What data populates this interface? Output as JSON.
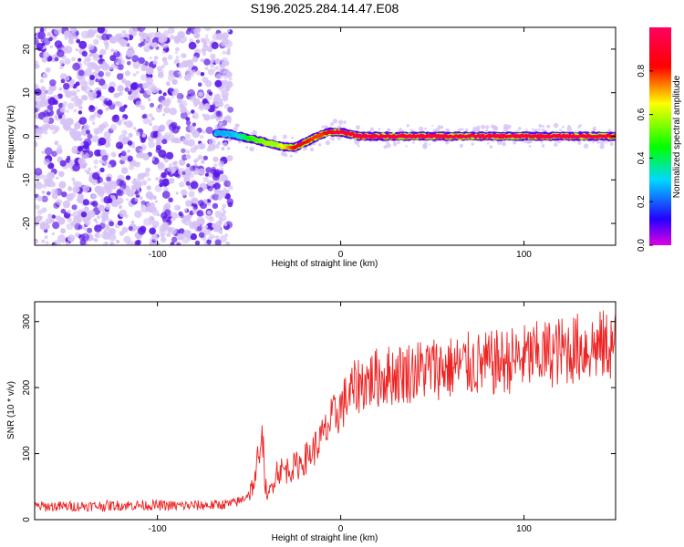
{
  "figure": {
    "title": "S196.2025.284.14.47.E08"
  },
  "colors": {
    "snr_line": "#ee2222",
    "scatter_points": "#5a16e8",
    "scatter_faint": "#d6c2f6",
    "colormap": [
      "#e000e0",
      "#2400ff",
      "#00d8ff",
      "#00ff00",
      "#ffff00",
      "#ff0000",
      "#ff0060"
    ]
  },
  "chart_data": [
    {
      "type": "heatmap",
      "title": "S196.2025.284.14.47.E08",
      "xlabel": "Height of straight line (km)",
      "ylabel": "Frequency (Hz)",
      "xlim": [
        -167,
        150
      ],
      "ylim": [
        -25,
        25
      ],
      "xticks": [
        -100,
        0,
        100
      ],
      "xtick_labels": [
        "-100",
        "0",
        "100"
      ],
      "yticks": [
        -20,
        -10,
        0,
        10,
        20
      ],
      "ytick_labels": [
        "-20",
        "-10",
        "0",
        "10",
        "20"
      ],
      "noise_region_x": [
        -167,
        -60
      ],
      "ridge": {
        "x": [
          -68,
          -60,
          -55,
          -50,
          -45,
          -40,
          -35,
          -30,
          -25,
          -20,
          -15,
          -10,
          -5,
          0,
          5,
          10,
          20,
          40,
          60,
          80,
          100,
          120,
          140,
          150
        ],
        "frequency": [
          0.8,
          0.5,
          0.0,
          -0.5,
          -1.0,
          -1.5,
          -2.0,
          -2.5,
          -2.5,
          -1.5,
          -0.5,
          0.5,
          1.0,
          1.0,
          0.5,
          0.0,
          0.0,
          0.0,
          0.0,
          0.0,
          0.0,
          0.0,
          0.0,
          0.0
        ],
        "normalized_amplitude": [
          0.3,
          0.3,
          0.35,
          0.5,
          0.55,
          0.6,
          0.6,
          0.7,
          0.85,
          0.85,
          0.8,
          0.8,
          0.9,
          0.95,
          0.9,
          0.95,
          0.95,
          0.95,
          0.95,
          0.95,
          0.95,
          0.95,
          0.95,
          0.9
        ]
      },
      "colorbar": {
        "label": "Normalized spectral amplitude",
        "range": [
          0,
          1
        ],
        "ticks": [
          0.0,
          0.2,
          0.4,
          0.6,
          0.8
        ],
        "tick_labels": [
          "0.0",
          "0.2",
          "0.4",
          "0.6",
          "0.8"
        ]
      }
    },
    {
      "type": "line",
      "xlabel": "Height of straight line (km)",
      "ylabel": "SNR (10 * v/v)",
      "xlim": [
        -167,
        150
      ],
      "ylim": [
        0,
        330
      ],
      "xticks": [
        -100,
        0,
        100
      ],
      "xtick_labels": [
        "-100",
        "0",
        "100"
      ],
      "yticks": [
        0,
        100,
        200,
        300
      ],
      "ytick_labels": [
        "0",
        "100",
        "200",
        "300"
      ],
      "series": [
        {
          "name": "SNR",
          "x": [
            -167,
            -150,
            -130,
            -110,
            -90,
            -70,
            -60,
            -55,
            -50,
            -45,
            -43,
            -40,
            -35,
            -30,
            -25,
            -20,
            -15,
            -10,
            -5,
            0,
            5,
            10,
            15,
            20,
            30,
            40,
            50,
            60,
            70,
            80,
            90,
            100,
            110,
            120,
            130,
            140,
            150
          ],
          "values": [
            20,
            20,
            21,
            22,
            21,
            22,
            24,
            28,
            40,
            70,
            100,
            30,
            75,
            75,
            80,
            90,
            105,
            125,
            150,
            170,
            190,
            205,
            210,
            215,
            220,
            225,
            230,
            230,
            235,
            235,
            240,
            245,
            250,
            255,
            260,
            262,
            265
          ]
        }
      ]
    }
  ]
}
